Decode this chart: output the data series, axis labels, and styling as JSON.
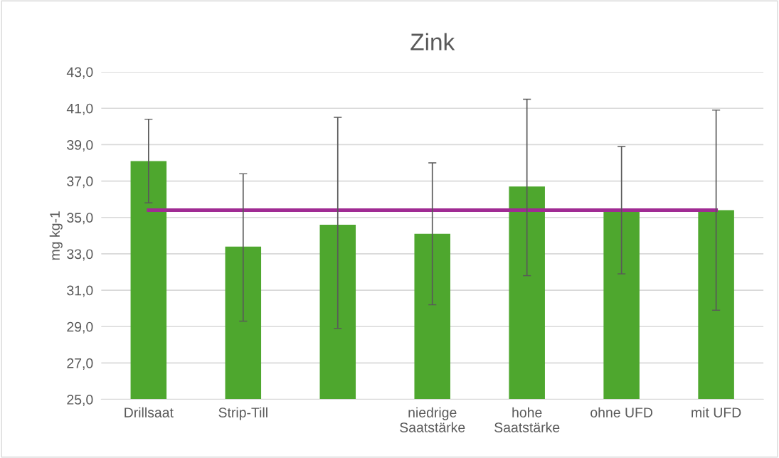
{
  "chart_data": {
    "type": "bar",
    "title": "Zink",
    "ylabel": "mg kg-1",
    "categories": [
      "Drillsaat",
      "Strip-Till",
      null,
      "niedrige\nSaatstärke",
      "hohe\nSaatstärke",
      "ohne UFD",
      "mit UFD"
    ],
    "series": [
      {
        "color": "#4ea72e",
        "values": [
          38.1,
          33.4,
          34.6,
          34.1,
          36.7,
          35.4,
          35.4
        ],
        "errors": [
          [
            35.8,
            40.4
          ],
          [
            29.3,
            37.4
          ],
          [
            28.9,
            40.5
          ],
          [
            30.2,
            38.0
          ],
          [
            31.8,
            41.5
          ],
          [
            31.9,
            38.9
          ],
          [
            29.9,
            40.9
          ]
        ]
      },
      {
        "type": "line",
        "color": "#a02b93",
        "values": [
          35.4,
          35.4,
          35.4,
          35.4,
          35.4,
          35.4,
          35.4
        ]
      }
    ],
    "ylim": [
      25,
      43
    ],
    "yticks": [
      {
        "value": 25,
        "label": "25,0"
      },
      {
        "value": 27,
        "label": "27,0"
      },
      {
        "value": 29,
        "label": "29,0"
      },
      {
        "value": 31,
        "label": "31,0"
      },
      {
        "value": 33,
        "label": "33,0"
      },
      {
        "value": 35,
        "label": "35,0"
      },
      {
        "value": 37,
        "label": "37,0"
      },
      {
        "value": 39,
        "label": "39,0"
      },
      {
        "value": 41,
        "label": "41,0"
      },
      {
        "value": 43,
        "label": "43,0"
      }
    ],
    "grid": "y",
    "marker": "none",
    "line_style": "solid"
  }
}
